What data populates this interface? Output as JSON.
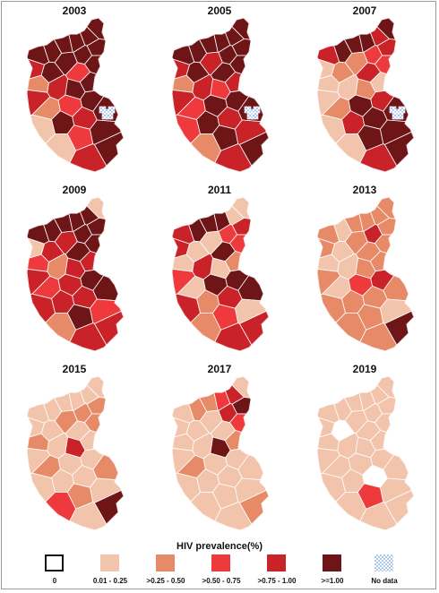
{
  "colors": {
    "c0": "#ffffff",
    "c1": "#f2c4ac",
    "c2": "#e68a68",
    "c3": "#ef3a3d",
    "c4": "#c92228",
    "c5": "#6e1518",
    "nodata": "#a9c8ef"
  },
  "maps": [
    {
      "year": "2003",
      "fill": [
        "c5",
        "c5",
        "c5",
        "c5",
        "c5",
        "c5",
        "c5",
        "c5",
        "c5",
        "c5",
        "c4",
        "c5",
        "c3",
        "c5",
        "c2",
        "c4",
        "c5",
        "c4",
        "c5",
        "c3",
        "c2",
        "c5",
        "c4",
        "c5",
        "c1",
        "c5",
        "c3",
        "c5",
        "c1",
        "c4"
      ],
      "nodata": true
    },
    {
      "year": "2005",
      "fill": [
        "c5",
        "c5",
        "c5",
        "c5",
        "c5",
        "c5",
        "c5",
        "c5",
        "c4",
        "c5",
        "c4",
        "c5",
        "c5",
        "c4",
        "c2",
        "c4",
        "c3",
        "c4",
        "c5",
        "c5",
        "c3",
        "c5",
        "c4",
        "c5",
        "c3",
        "c4",
        "c5",
        "c5",
        "c2",
        "c4"
      ],
      "nodata": true
    },
    {
      "year": "2007",
      "fill": [
        "c5",
        "c4",
        "c5",
        "c5",
        "c4",
        "c5",
        "c3",
        "c4",
        "c2",
        "c3",
        "c1",
        "c2",
        "c4",
        "c1",
        "c1",
        "c1",
        "c2",
        "c1",
        "c4",
        "c5",
        "c2",
        "c5",
        "c5",
        "c4",
        "c1",
        "c5",
        "c5",
        "c5",
        "c1",
        "c4"
      ],
      "nodata": true
    },
    {
      "year": "2009",
      "fill": [
        "c1",
        "c5",
        "c5",
        "c5",
        "c5",
        "c5",
        "c5",
        "c5",
        "c4",
        "c5",
        "c1",
        "c4",
        "c5",
        "c4",
        "c3",
        "c2",
        "c4",
        "c4",
        "c5",
        "c4",
        "c3",
        "c5",
        "c4",
        "c4",
        "c4",
        "c3",
        "c5",
        "c4",
        "c2",
        "c4"
      ],
      "nodata": false
    },
    {
      "year": "2011",
      "fill": [
        "c1",
        "c1",
        "c5",
        "c5",
        "c4",
        "c5",
        "c3",
        "c4",
        "c1",
        "c3",
        "c4",
        "c1",
        "c5",
        "c2",
        "c1",
        "c4",
        "c1",
        "c3",
        "c5",
        "c5",
        "c1",
        "c5",
        "c4",
        "c2",
        "c4",
        "c1",
        "c3",
        "c4",
        "c2",
        "c4"
      ],
      "nodata": false
    },
    {
      "year": "2013",
      "fill": [
        "c2",
        "c2",
        "c2",
        "c2",
        "c2",
        "c1",
        "c4",
        "c2",
        "c2",
        "c2",
        "c2",
        "c1",
        "c2",
        "c2",
        "c1",
        "c1",
        "c2",
        "c2",
        "c4",
        "c3",
        "c1",
        "c2",
        "c2",
        "c2",
        "c2",
        "c1",
        "c2",
        "c5",
        "c2",
        "c2"
      ],
      "nodata": false
    },
    {
      "year": "2015",
      "fill": [
        "c1",
        "c1",
        "c1",
        "c1",
        "c2",
        "c1",
        "c2",
        "c1",
        "c2",
        "c2",
        "c1",
        "c1",
        "c1",
        "c1",
        "c2",
        "c1",
        "c4",
        "c1",
        "c1",
        "c1",
        "c2",
        "c2",
        "c1",
        "c1",
        "c1",
        "c1",
        "c2",
        "c5",
        "c3",
        "c1"
      ],
      "nodata": false
    },
    {
      "year": "2017",
      "fill": [
        "c1",
        "c4",
        "c3",
        "c2",
        "c5",
        "c2",
        "c4",
        "c1",
        "c1",
        "c3",
        "c1",
        "c1",
        "c1",
        "c2",
        "c1",
        "c1",
        "c5",
        "c1",
        "c1",
        "c1",
        "c2",
        "c1",
        "c1",
        "c1",
        "c1",
        "c1",
        "c1",
        "c2",
        "c1",
        "c1"
      ],
      "nodata": false
    },
    {
      "year": "2019",
      "fill": [
        "c1",
        "c1",
        "c1",
        "c1",
        "c1",
        "c1",
        "c1",
        "c1",
        "c1",
        "c1",
        "c1",
        "c0",
        "c1",
        "c1",
        "c1",
        "c1",
        "c1",
        "c1",
        "c1",
        "c1",
        "c1",
        "c1",
        "c0",
        "c1",
        "c1",
        "c1",
        "c3",
        "c1",
        "c1",
        "c1"
      ],
      "nodata": false
    }
  ],
  "legend": {
    "title": "HIV prevalence(%)",
    "items": [
      {
        "label": "0",
        "color": "c0"
      },
      {
        "label": "0.01 - 0.25",
        "color": "c1"
      },
      {
        "label": ">0.25 - 0.50",
        "color": "c2"
      },
      {
        "label": ">0.50 - 0.75",
        "color": "c3"
      },
      {
        "label": ">0.75 - 1.00",
        "color": "c4"
      },
      {
        "label": ">=1.00",
        "color": "c5"
      },
      {
        "label": "No data",
        "color": "nodata"
      }
    ]
  }
}
